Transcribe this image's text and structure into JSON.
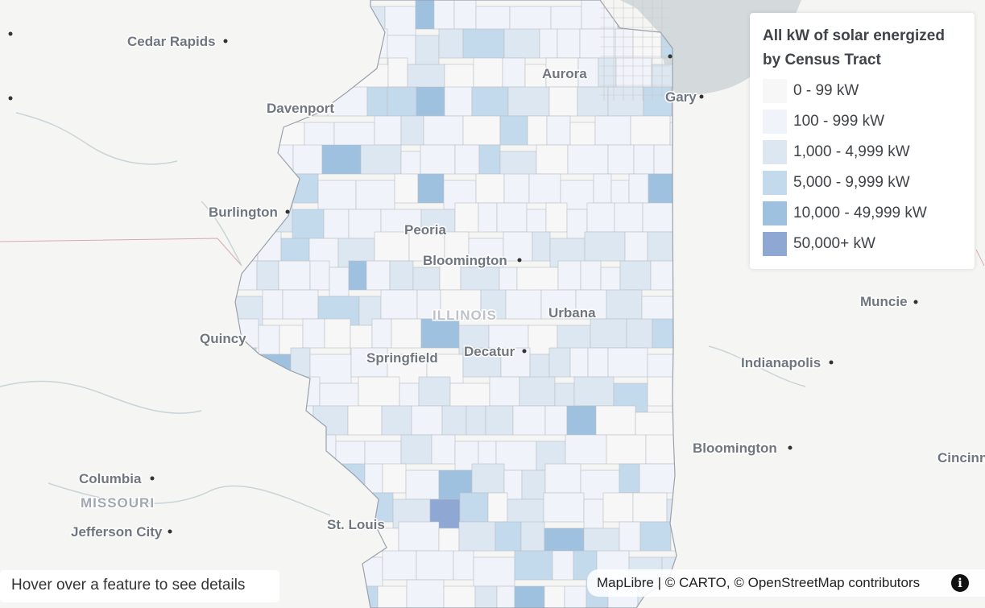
{
  "map": {
    "cities": [
      {
        "name": "Cedar Rapids"
      },
      {
        "name": "Davenport"
      },
      {
        "name": "Burlington"
      },
      {
        "name": "Quincy"
      },
      {
        "name": "Peoria"
      },
      {
        "name": "Bloomington"
      },
      {
        "name": "Springfield"
      },
      {
        "name": "Decatur"
      },
      {
        "name": "Urbana"
      },
      {
        "name": "Aurora"
      },
      {
        "name": "Gary"
      },
      {
        "name": "Muncie"
      },
      {
        "name": "Indianapolis"
      },
      {
        "name": "Bloomington"
      },
      {
        "name": "Cincinn"
      },
      {
        "name": "Columbia"
      },
      {
        "name": "Jefferson City"
      },
      {
        "name": "St. Louis"
      }
    ],
    "states": [
      {
        "name": "ILLINOIS"
      },
      {
        "name": "MISSOURI"
      }
    ],
    "colors": {
      "water": "#d4dadc",
      "land": "#f5f5f3",
      "tract_border": "#b9bec6",
      "bin_0": "#f7f7f7",
      "bin_1": "#f0f3fa",
      "bin_2": "#dde7f1",
      "bin_3": "#c3d9ec",
      "bin_4": "#9ec1df",
      "bin_5": "#8ea8d3"
    }
  },
  "legend": {
    "title": "All kW of solar energized by Census Tract",
    "items": [
      {
        "label": "0 - 99 kW",
        "color": "#f7f7f7"
      },
      {
        "label": "100 - 999 kW",
        "color": "#f0f3fa"
      },
      {
        "label": "1,000 - 4,999 kW",
        "color": "#dde7f1"
      },
      {
        "label": "5,000 - 9,999 kW",
        "color": "#c3d9ec"
      },
      {
        "label": "10,000 - 49,999 kW",
        "color": "#9ec1df"
      },
      {
        "label": "50,000+ kW",
        "color": "#8ea8d3"
      }
    ]
  },
  "hover_info": "Hover over a feature to see details",
  "attribution": {
    "maplibre": "MapLibre",
    "sep": " | © ",
    "carto": "CARTO",
    "sep2": ", © ",
    "osm": "OpenStreetMap",
    "contributors": " contributors",
    "info_icon": "info-icon"
  }
}
